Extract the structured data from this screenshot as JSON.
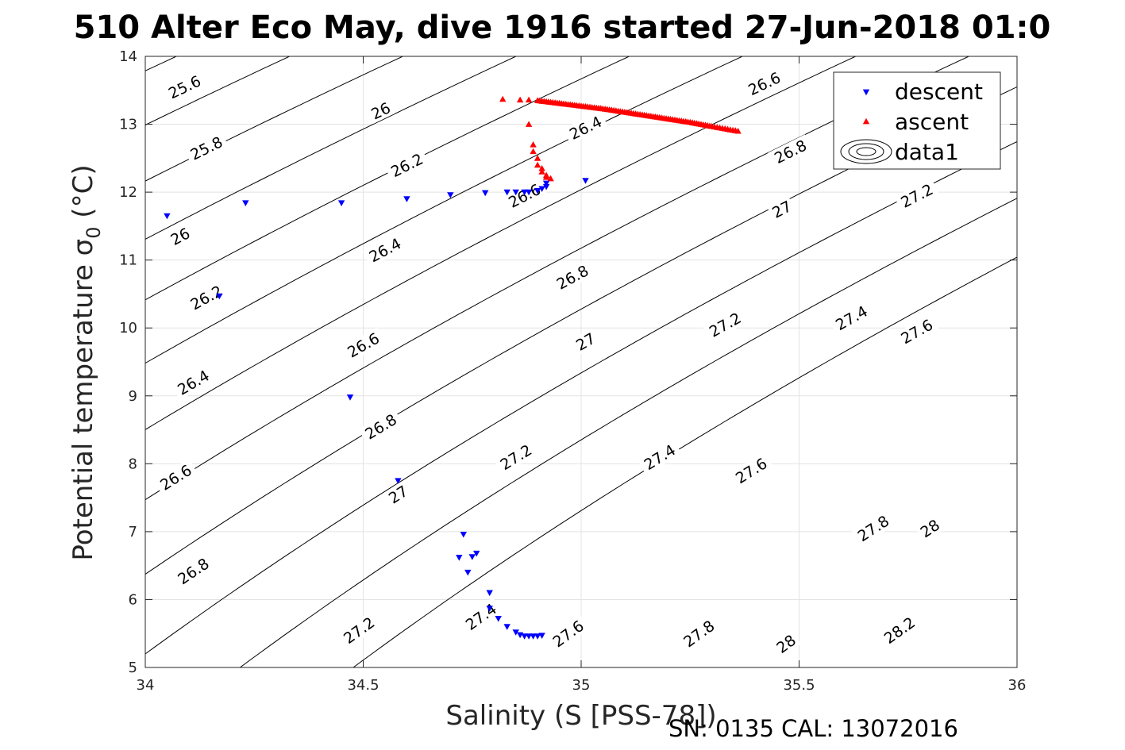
{
  "chart_data": {
    "type": "scatter",
    "title": "510 Alter Eco May, dive 1916 started 27-Jun-2018 01:0",
    "xlabel": "Salinity (S [PSS-78])",
    "ylabel": "Potential temperature σ",
    "ylabel_subscript": "0",
    "ylabel_unit": "(°C)",
    "footer": "SN: 0135  CAL: 13072016",
    "xlim": [
      34,
      36
    ],
    "ylim": [
      5,
      14
    ],
    "xticks": [
      34,
      34.5,
      35,
      35.5,
      36
    ],
    "xtick_labels": [
      "34",
      "34.5",
      "35",
      "35.5",
      "36"
    ],
    "yticks": [
      5,
      6,
      7,
      8,
      9,
      10,
      11,
      12,
      13,
      14
    ],
    "ytick_labels": [
      "5",
      "6",
      "7",
      "8",
      "9",
      "10",
      "11",
      "12",
      "13",
      "14"
    ],
    "grid": true,
    "legend_position": "top-right",
    "legend": [
      "descent",
      "ascent",
      "data1"
    ],
    "series": [
      {
        "name": "descent",
        "marker": "triangle-down",
        "color": "#0000ff",
        "x": [
          34.05,
          34.17,
          34.23,
          34.45,
          34.47,
          34.58,
          34.6,
          34.7,
          34.73,
          34.72,
          34.74,
          34.75,
          34.76,
          34.78,
          34.79,
          34.83,
          34.85,
          34.87,
          34.88,
          34.9,
          34.91,
          34.92,
          34.92,
          35.01,
          34.79,
          34.81,
          34.83,
          34.85,
          34.86,
          34.87,
          34.88,
          34.89,
          34.9,
          34.91
        ],
        "y": [
          11.65,
          10.47,
          11.84,
          11.84,
          8.98,
          7.75,
          11.9,
          11.96,
          6.96,
          6.62,
          6.4,
          6.63,
          6.68,
          11.99,
          6.1,
          12.0,
          12.0,
          12.0,
          12.0,
          12.02,
          12.05,
          12.08,
          12.13,
          12.17,
          5.87,
          5.72,
          5.6,
          5.52,
          5.48,
          5.46,
          5.46,
          5.46,
          5.46,
          5.47
        ]
      },
      {
        "name": "ascent",
        "marker": "triangle-up",
        "color": "#ff0000",
        "x": [
          34.82,
          34.86,
          34.88,
          34.88,
          34.89,
          34.89,
          34.9,
          34.9,
          34.91,
          34.91,
          34.92,
          34.92,
          34.93,
          34.9,
          34.95,
          35.0,
          35.05,
          35.1,
          35.15,
          35.2,
          35.25,
          35.3,
          35.36
        ],
        "y": [
          13.37,
          13.36,
          13.36,
          13.0,
          12.7,
          12.6,
          12.5,
          12.4,
          12.35,
          12.3,
          12.25,
          12.22,
          12.2,
          13.35,
          13.31,
          13.27,
          13.23,
          13.18,
          13.13,
          13.08,
          13.03,
          12.97,
          12.9
        ]
      }
    ],
    "contours": {
      "name": "data1",
      "color": "#000000",
      "levels": [
        25.6,
        25.8,
        26,
        26.2,
        26.4,
        26.6,
        26.8,
        27,
        27.2,
        27.4,
        27.6,
        27.8,
        28,
        28.2
      ],
      "labels": [
        {
          "text": "25.6",
          "x": 34.09,
          "y": 13.55
        },
        {
          "text": "25.8",
          "x": 34.14,
          "y": 12.65
        },
        {
          "text": "26",
          "x": 34.08,
          "y": 11.35
        },
        {
          "text": "26.2",
          "x": 34.14,
          "y": 10.45
        },
        {
          "text": "26.4",
          "x": 34.11,
          "y": 9.2
        },
        {
          "text": "26.6",
          "x": 34.07,
          "y": 7.8
        },
        {
          "text": "26.8",
          "x": 34.11,
          "y": 6.42
        },
        {
          "text": "26",
          "x": 34.54,
          "y": 13.2
        },
        {
          "text": "26.2",
          "x": 34.6,
          "y": 12.4
        },
        {
          "text": "26.4",
          "x": 34.55,
          "y": 11.15
        },
        {
          "text": "26.6",
          "x": 34.5,
          "y": 9.75
        },
        {
          "text": "26.8",
          "x": 34.54,
          "y": 8.55
        },
        {
          "text": "27",
          "x": 34.58,
          "y": 7.55
        },
        {
          "text": "27.2",
          "x": 34.49,
          "y": 5.55
        },
        {
          "text": "27.4",
          "x": 34.77,
          "y": 5.75
        },
        {
          "text": "27.6",
          "x": 34.97,
          "y": 5.5
        },
        {
          "text": "26.4",
          "x": 35.01,
          "y": 12.95
        },
        {
          "text": "26.6",
          "x": 34.87,
          "y": 11.95
        },
        {
          "text": "26.8",
          "x": 34.98,
          "y": 10.75
        },
        {
          "text": "27",
          "x": 35.01,
          "y": 9.8
        },
        {
          "text": "27.2",
          "x": 34.85,
          "y": 8.1
        },
        {
          "text": "27.4",
          "x": 35.18,
          "y": 8.1
        },
        {
          "text": "27.8",
          "x": 35.27,
          "y": 5.5
        },
        {
          "text": "26.6",
          "x": 35.42,
          "y": 13.6
        },
        {
          "text": "26.8",
          "x": 35.48,
          "y": 12.6
        },
        {
          "text": "27",
          "x": 35.46,
          "y": 11.75
        },
        {
          "text": "27.2",
          "x": 35.33,
          "y": 10.05
        },
        {
          "text": "27.6",
          "x": 35.39,
          "y": 7.9
        },
        {
          "text": "28",
          "x": 35.47,
          "y": 5.35
        },
        {
          "text": "27.2",
          "x": 35.77,
          "y": 11.95
        },
        {
          "text": "27.4",
          "x": 35.62,
          "y": 10.15
        },
        {
          "text": "27.6",
          "x": 35.77,
          "y": 9.95
        },
        {
          "text": "27.8",
          "x": 35.67,
          "y": 7.05
        },
        {
          "text": "28",
          "x": 35.8,
          "y": 7.05
        },
        {
          "text": "28.2",
          "x": 35.73,
          "y": 5.55
        }
      ]
    }
  },
  "colors": {
    "descent": "#0000ff",
    "ascent": "#ff0000",
    "contour": "#000000",
    "grid": "#e3e3e3",
    "axis": "#262626"
  }
}
